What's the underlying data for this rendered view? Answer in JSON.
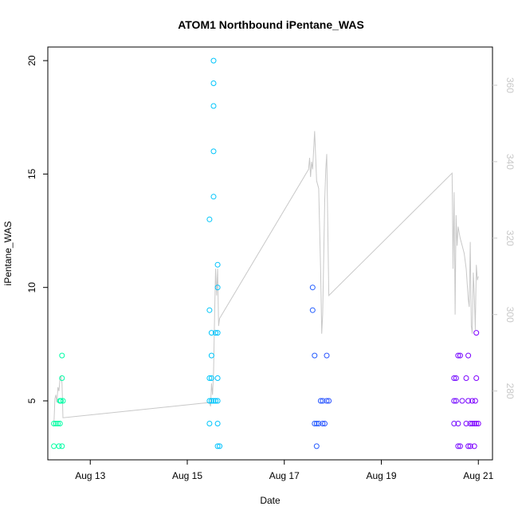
{
  "chart_data": {
    "type": "scatter",
    "title": "ATOM1 Northbound iPentane_WAS",
    "xlabel": "Date",
    "ylabel": "iPentane_WAS",
    "xlim": [
      "2016-08-12 03:00",
      "2016-08-21 07:00"
    ],
    "ylim": [
      2.4,
      20.6
    ],
    "x_ticks": [
      "Aug 13",
      "Aug 15",
      "Aug 17",
      "Aug 19",
      "Aug 21"
    ],
    "x_tick_dates": [
      "2016-08-13",
      "2016-08-15",
      "2016-08-17",
      "2016-08-19",
      "2016-08-21"
    ],
    "y_ticks": [
      5,
      10,
      15,
      20
    ],
    "y2_ticks": [
      280,
      300,
      320,
      340,
      360
    ],
    "y2lim": [
      262,
      370
    ],
    "grid": false,
    "legend": "none",
    "point_color_scale": [
      "#00ffa0",
      "#00e8e0",
      "#00c0ff",
      "#2060ff",
      "#5a2cff",
      "#8000ff"
    ],
    "line_color": "#c8c8c8",
    "series": [
      {
        "type": "points",
        "points": [
          [
            "2016-08-12 06:00",
            4
          ],
          [
            "2016-08-12 06:00",
            3
          ],
          [
            "2016-08-12 07:00",
            4
          ],
          [
            "2016-08-12 08:00",
            4
          ],
          [
            "2016-08-12 08:30",
            3
          ],
          [
            "2016-08-12 09:00",
            4
          ],
          [
            "2016-08-12 09:00",
            5
          ],
          [
            "2016-08-12 09:30",
            5
          ],
          [
            "2016-08-12 10:00",
            3
          ],
          [
            "2016-08-12 10:00",
            6
          ],
          [
            "2016-08-12 10:00",
            7
          ],
          [
            "2016-08-12 10:30",
            5
          ],
          [
            "2016-08-15 11:00",
            13
          ],
          [
            "2016-08-15 11:00",
            9
          ],
          [
            "2016-08-15 11:00",
            6
          ],
          [
            "2016-08-15 11:00",
            5
          ],
          [
            "2016-08-15 11:00",
            4
          ],
          [
            "2016-08-15 12:00",
            8
          ],
          [
            "2016-08-15 12:00",
            7
          ],
          [
            "2016-08-15 12:00",
            6
          ],
          [
            "2016-08-15 12:00",
            5
          ],
          [
            "2016-08-15 13:00",
            20
          ],
          [
            "2016-08-15 13:00",
            19
          ],
          [
            "2016-08-15 13:00",
            18
          ],
          [
            "2016-08-15 13:00",
            16
          ],
          [
            "2016-08-15 13:00",
            14
          ],
          [
            "2016-08-15 13:00",
            5
          ],
          [
            "2016-08-15 14:00",
            8
          ],
          [
            "2016-08-15 14:00",
            5
          ],
          [
            "2016-08-15 15:00",
            11
          ],
          [
            "2016-08-15 15:00",
            10
          ],
          [
            "2016-08-15 15:00",
            8
          ],
          [
            "2016-08-15 15:00",
            6
          ],
          [
            "2016-08-15 15:00",
            5
          ],
          [
            "2016-08-15 15:00",
            4
          ],
          [
            "2016-08-15 15:00",
            3
          ],
          [
            "2016-08-15 16:00",
            3
          ],
          [
            "2016-08-17 14:00",
            10
          ],
          [
            "2016-08-17 14:00",
            9
          ],
          [
            "2016-08-17 15:00",
            7
          ],
          [
            "2016-08-17 15:00",
            4
          ],
          [
            "2016-08-17 16:00",
            3
          ],
          [
            "2016-08-17 16:00",
            4
          ],
          [
            "2016-08-17 17:00",
            4
          ],
          [
            "2016-08-17 18:00",
            5
          ],
          [
            "2016-08-17 19:00",
            4
          ],
          [
            "2016-08-17 19:00",
            5
          ],
          [
            "2016-08-17 20:00",
            4
          ],
          [
            "2016-08-17 21:00",
            7
          ],
          [
            "2016-08-17 21:00",
            5
          ],
          [
            "2016-08-17 22:00",
            5
          ],
          [
            "2016-08-20 12:00",
            6
          ],
          [
            "2016-08-20 12:00",
            5
          ],
          [
            "2016-08-20 12:00",
            4
          ],
          [
            "2016-08-20 13:00",
            6
          ],
          [
            "2016-08-20 13:00",
            5
          ],
          [
            "2016-08-20 14:00",
            7
          ],
          [
            "2016-08-20 14:00",
            4
          ],
          [
            "2016-08-20 14:00",
            3
          ],
          [
            "2016-08-20 15:00",
            7
          ],
          [
            "2016-08-20 15:00",
            3
          ],
          [
            "2016-08-20 16:00",
            5
          ],
          [
            "2016-08-20 18:00",
            6
          ],
          [
            "2016-08-20 18:00",
            4
          ],
          [
            "2016-08-20 19:00",
            7
          ],
          [
            "2016-08-20 19:00",
            5
          ],
          [
            "2016-08-20 19:00",
            3
          ],
          [
            "2016-08-20 20:00",
            4
          ],
          [
            "2016-08-20 20:00",
            3
          ],
          [
            "2016-08-20 21:00",
            5
          ],
          [
            "2016-08-20 21:00",
            4
          ],
          [
            "2016-08-20 22:00",
            3
          ],
          [
            "2016-08-20 22:00",
            4
          ],
          [
            "2016-08-20 22:30",
            5
          ],
          [
            "2016-08-20 23:00",
            8
          ],
          [
            "2016-08-20 23:00",
            6
          ],
          [
            "2016-08-20 23:00",
            4
          ],
          [
            "2016-08-21 00:00",
            4
          ]
        ]
      },
      {
        "type": "line",
        "axis": "right",
        "points": [
          [
            "2016-08-12 06:00",
            271
          ],
          [
            "2016-08-12 06:30",
            278
          ],
          [
            "2016-08-12 07:00",
            279
          ],
          [
            "2016-08-12 07:30",
            277
          ],
          [
            "2016-08-12 08:00",
            281
          ],
          [
            "2016-08-12 08:30",
            280
          ],
          [
            "2016-08-12 09:00",
            283
          ],
          [
            "2016-08-12 09:30",
            284
          ],
          [
            "2016-08-12 10:00",
            282
          ],
          [
            "2016-08-12 10:30",
            273
          ],
          [
            "2016-08-15 11:00",
            277
          ],
          [
            "2016-08-15 11:30",
            276
          ],
          [
            "2016-08-15 12:00",
            282
          ],
          [
            "2016-08-15 12:30",
            279
          ],
          [
            "2016-08-15 13:00",
            285
          ],
          [
            "2016-08-15 13:30",
            300
          ],
          [
            "2016-08-15 14:00",
            312
          ],
          [
            "2016-08-15 14:30",
            305
          ],
          [
            "2016-08-15 15:00",
            312
          ],
          [
            "2016-08-15 15:30",
            297
          ],
          [
            "2016-08-15 16:00",
            299
          ],
          [
            "2016-08-17 12:00",
            338
          ],
          [
            "2016-08-17 12:30",
            341
          ],
          [
            "2016-08-17 13:00",
            336
          ],
          [
            "2016-08-17 13:30",
            340
          ],
          [
            "2016-08-17 14:00",
            338
          ],
          [
            "2016-08-17 15:00",
            348
          ],
          [
            "2016-08-17 16:00",
            335
          ],
          [
            "2016-08-17 17:00",
            333
          ],
          [
            "2016-08-17 18:00",
            311
          ],
          [
            "2016-08-17 18:30",
            295
          ],
          [
            "2016-08-17 19:00",
            300
          ],
          [
            "2016-08-17 20:00",
            330
          ],
          [
            "2016-08-17 20:30",
            338
          ],
          [
            "2016-08-17 21:00",
            342
          ],
          [
            "2016-08-17 22:00",
            305
          ],
          [
            "2016-08-20 11:00",
            337
          ],
          [
            "2016-08-20 11:30",
            312
          ],
          [
            "2016-08-20 12:00",
            332
          ],
          [
            "2016-08-20 12:30",
            300
          ],
          [
            "2016-08-20 13:00",
            326
          ],
          [
            "2016-08-20 13:30",
            318
          ],
          [
            "2016-08-20 14:00",
            323
          ],
          [
            "2016-08-20 15:00",
            320
          ],
          [
            "2016-08-20 16:00",
            318
          ],
          [
            "2016-08-20 17:00",
            316
          ],
          [
            "2016-08-20 18:00",
            312
          ],
          [
            "2016-08-20 19:00",
            304
          ],
          [
            "2016-08-20 19:30",
            302
          ],
          [
            "2016-08-20 20:00",
            319
          ],
          [
            "2016-08-20 20:30",
            297
          ],
          [
            "2016-08-20 21:00",
            295
          ],
          [
            "2016-08-20 21:30",
            311
          ],
          [
            "2016-08-20 22:00",
            305
          ],
          [
            "2016-08-20 22:30",
            296
          ],
          [
            "2016-08-20 23:00",
            313
          ],
          [
            "2016-08-20 23:30",
            309
          ],
          [
            "2016-08-21 00:00",
            310
          ]
        ]
      }
    ]
  }
}
